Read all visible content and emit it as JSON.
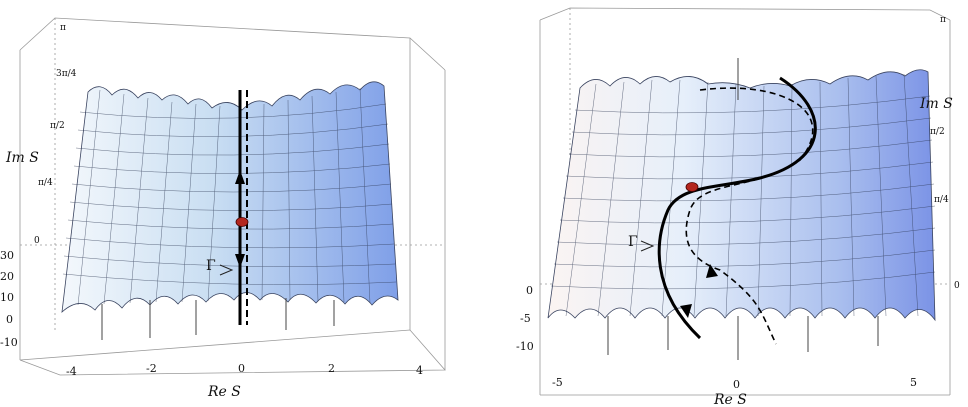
{
  "left_panel": {
    "x_axis_label": "Re S",
    "y_axis_label": "Im S",
    "contour_label": "Γ",
    "x_ticks": [
      "-4",
      "-2",
      "0",
      "2",
      "4"
    ],
    "z_ticks": [
      "30",
      "20",
      "10",
      "0",
      "-10"
    ],
    "im_ticks": [
      "π",
      "3π/4",
      "π/2",
      "π/4",
      "0"
    ]
  },
  "right_panel": {
    "x_axis_label": "Re S",
    "y_axis_label": "Im S",
    "contour_label": "Γ",
    "x_ticks": [
      "-5",
      "0",
      "5"
    ],
    "z_ticks": [
      "0",
      "-5",
      "-10"
    ],
    "im_ticks": [
      "π",
      "π/2",
      "π/4",
      "0"
    ]
  },
  "colors": {
    "surface_light": "#eef4fb",
    "surface_mid": "#b9d3ee",
    "surface_dark": "#6f8fe0",
    "mesh": "#2a3550",
    "saddle_point": "#b3261e",
    "contour": "#000000"
  }
}
